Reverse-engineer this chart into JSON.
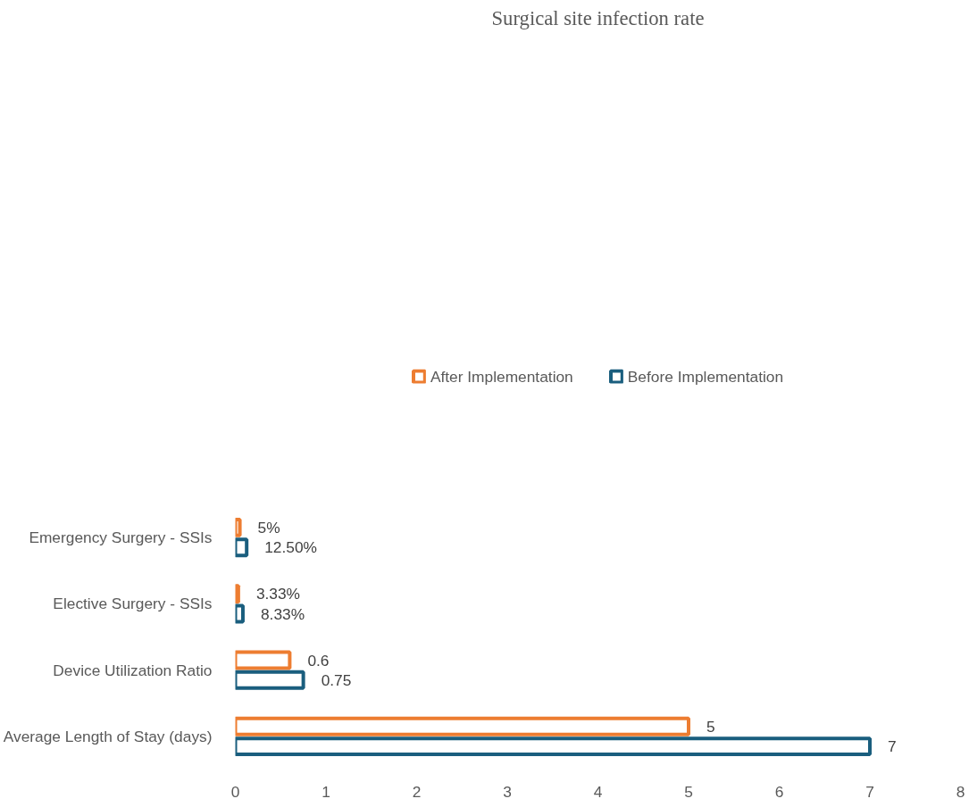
{
  "chart_data": {
    "type": "bar",
    "orientation": "horizontal",
    "title": "Surgical site infection rate",
    "categories": [
      "Emergency Surgery - SSIs",
      "Elective Surgery - SSIs",
      "Device Utilization Ratio",
      "Average Length of Stay (days)"
    ],
    "series": [
      {
        "name": "After Implementation",
        "color": "#ed7d31",
        "values": [
          0.05,
          0.0333,
          0.6,
          5
        ],
        "value_labels": [
          "5%",
          "3.33%",
          "0.6",
          "5"
        ]
      },
      {
        "name": "Before Implementation",
        "color": "#1a5e7e",
        "values": [
          0.125,
          0.0833,
          0.75,
          7
        ],
        "value_labels": [
          "12.50%",
          "8.33%",
          "0.75",
          "7"
        ]
      }
    ],
    "xlim": [
      0,
      8
    ],
    "xticks": [
      0,
      1,
      2,
      3,
      4,
      5,
      6,
      7,
      8
    ],
    "grid": false,
    "legend": "top"
  }
}
